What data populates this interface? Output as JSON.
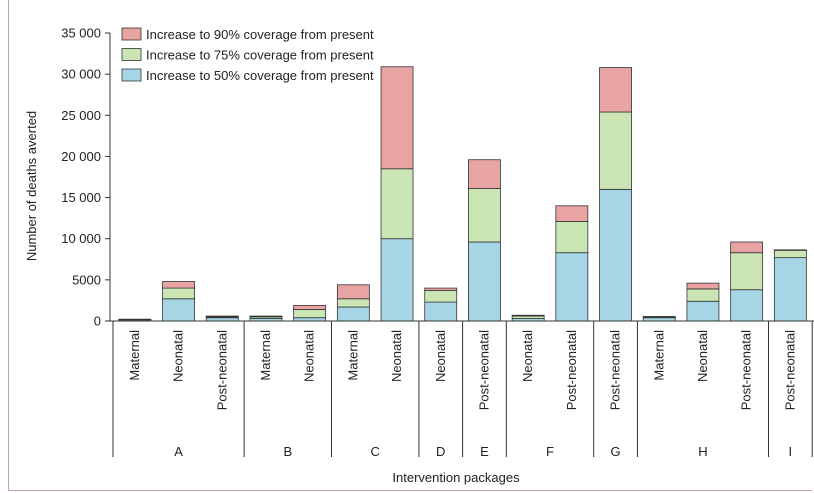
{
  "chart_data": {
    "type": "bar",
    "stacked": true,
    "ylabel": "Number of deaths averted",
    "xlabel": "Intervention packages",
    "ylim": [
      0,
      35000
    ],
    "yticks": [
      0,
      5000,
      10000,
      15000,
      20000,
      25000,
      30000,
      35000
    ],
    "ytick_labels": [
      "0",
      "5000",
      "10 000",
      "15 000",
      "20 000",
      "25 000",
      "30 000",
      "35 000"
    ],
    "legend_position": "top-left",
    "categories": [
      "Maternal",
      "Neonatal",
      "Post-neonatal",
      "Maternal",
      "Neonatal",
      "Maternal",
      "Neonatal",
      "Neonatal",
      "Post-neonatal",
      "Neonatal",
      "Post-neonatal",
      "Post-neonatal",
      "Maternal",
      "Neonatal",
      "Post-neonatal",
      "Post-neonatal"
    ],
    "groups": [
      {
        "label": "A",
        "count": 3
      },
      {
        "label": "B",
        "count": 2
      },
      {
        "label": "C",
        "count": 2
      },
      {
        "label": "D",
        "count": 1
      },
      {
        "label": "E",
        "count": 1
      },
      {
        "label": "F",
        "count": 2
      },
      {
        "label": "G",
        "count": 1
      },
      {
        "label": "H",
        "count": 3
      },
      {
        "label": "I",
        "count": 1
      }
    ],
    "series": [
      {
        "name": "Increase to 50% coverage from present",
        "color": "#a6d6e6",
        "values": [
          150,
          2700,
          400,
          300,
          400,
          1700,
          10000,
          2300,
          9600,
          300,
          8300,
          16000,
          400,
          2400,
          3800,
          7700
        ]
      },
      {
        "name": "Increase to 75% coverage from present",
        "color": "#cbe5b5",
        "values": [
          50,
          1300,
          100,
          200,
          1000,
          1000,
          8500,
          1400,
          6500,
          300,
          3800,
          9400,
          100,
          1500,
          4500,
          900
        ]
      },
      {
        "name": "Increase to 90% coverage from present",
        "color": "#e8a3a3",
        "values": [
          20,
          800,
          100,
          100,
          500,
          1700,
          12400,
          300,
          3500,
          100,
          1900,
          5400,
          50,
          700,
          1300,
          50
        ]
      }
    ]
  }
}
